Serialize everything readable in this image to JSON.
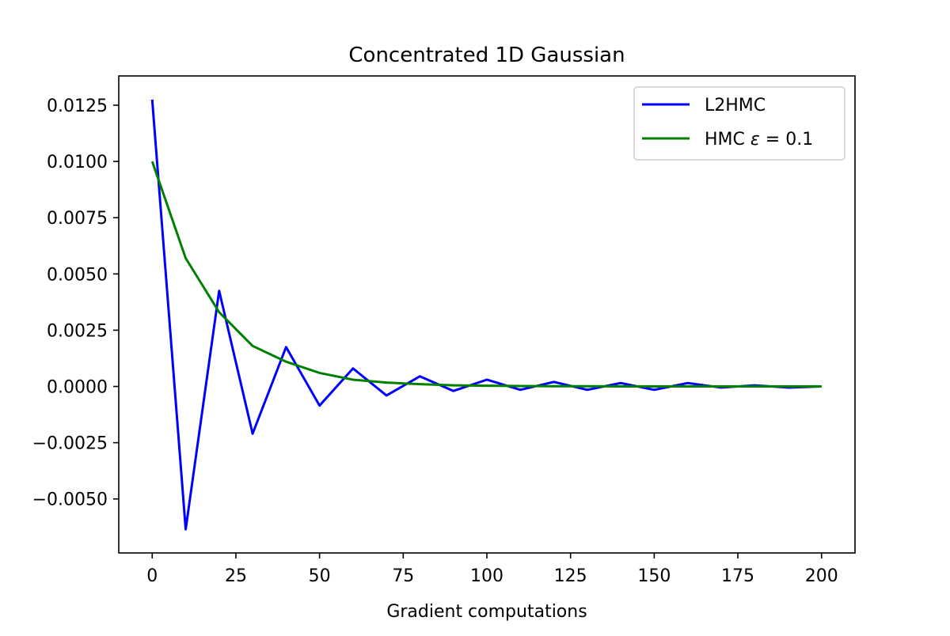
{
  "chart_data": {
    "type": "line",
    "title": "Concentrated 1D Gaussian",
    "xlabel": "Gradient computations",
    "ylabel": "",
    "xlim": [
      -10,
      210
    ],
    "ylim": [
      -0.0074,
      0.0138
    ],
    "xticks": [
      0,
      25,
      50,
      75,
      100,
      125,
      150,
      175,
      200
    ],
    "xtick_labels": [
      "0",
      "25",
      "50",
      "75",
      "100",
      "125",
      "150",
      "175",
      "200"
    ],
    "yticks": [
      -0.005,
      -0.0025,
      0.0,
      0.0025,
      0.005,
      0.0075,
      0.01,
      0.0125
    ],
    "ytick_labels": [
      "−0.0050",
      "−0.0025",
      "0.0000",
      "0.0025",
      "0.0050",
      "0.0075",
      "0.0100",
      "0.0125"
    ],
    "grid": false,
    "legend_position": "top-right",
    "series": [
      {
        "name": "L2HMC",
        "color": "#0000ff",
        "x": [
          0,
          10,
          20,
          30,
          40,
          50,
          60,
          70,
          80,
          90,
          100,
          110,
          120,
          130,
          140,
          150,
          160,
          170,
          180,
          190,
          200
        ],
        "y": [
          0.01275,
          -0.00635,
          0.00425,
          -0.0021,
          0.00175,
          -0.00085,
          0.0008,
          -0.0004,
          0.00045,
          -0.0002,
          0.0003,
          -0.00015,
          0.0002,
          -0.00015,
          0.00015,
          -0.00015,
          0.00015,
          -5e-05,
          5e-05,
          -5e-05,
          0.0
        ]
      },
      {
        "name_parts": {
          "prefix": "HMC ",
          "symbol": "ε",
          "suffix": " = 0.1"
        },
        "color": "#008000",
        "x": [
          0,
          10,
          20,
          30,
          40,
          50,
          60,
          70,
          80,
          90,
          100,
          110,
          120,
          130,
          140,
          150,
          160,
          170,
          180,
          190,
          200
        ],
        "y": [
          0.01,
          0.0057,
          0.0033,
          0.0018,
          0.0011,
          0.0006,
          0.0003,
          0.00017,
          0.0001,
          5e-05,
          3e-05,
          2e-05,
          1e-05,
          1e-05,
          0.0,
          0.0,
          0.0,
          0.0,
          0.0,
          0.0,
          0.0
        ]
      }
    ]
  }
}
